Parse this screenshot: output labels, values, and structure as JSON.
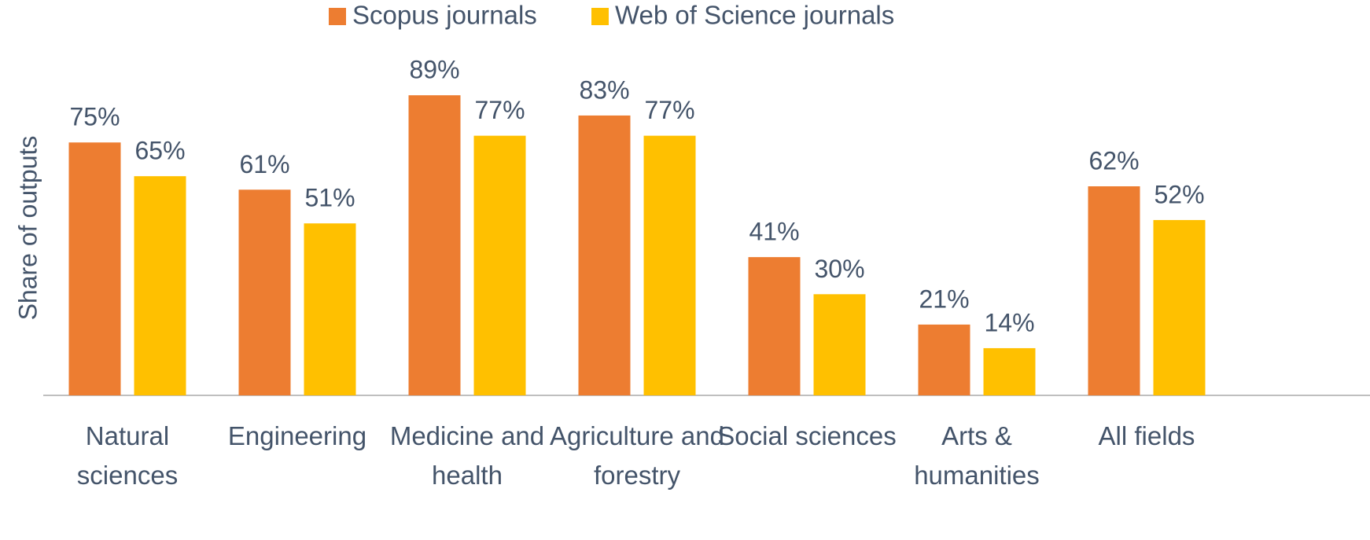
{
  "chart_data": {
    "type": "bar",
    "y_label": "Share of outputs",
    "categories": [
      "Natural sciences",
      "Engineering",
      "Medicine and health",
      "Agriculture and forestry",
      "Social sciences",
      "Arts & humanities",
      "All fields"
    ],
    "series": [
      {
        "name": "Scopus journals",
        "color": "#ED7D31",
        "values": [
          75,
          61,
          89,
          83,
          41,
          21,
          62
        ],
        "value_labels": [
          "75%",
          "61%",
          "89%",
          "83%",
          "41%",
          "21%",
          "62%"
        ]
      },
      {
        "name": "Web of Science journals",
        "color": "#FFC000",
        "values": [
          65,
          51,
          77,
          77,
          30,
          14,
          52
        ],
        "value_labels": [
          "65%",
          "51%",
          "77%",
          "77%",
          "30%",
          "14%",
          "52%"
        ]
      }
    ],
    "ylim": [
      0,
      100
    ],
    "legend": "top"
  }
}
